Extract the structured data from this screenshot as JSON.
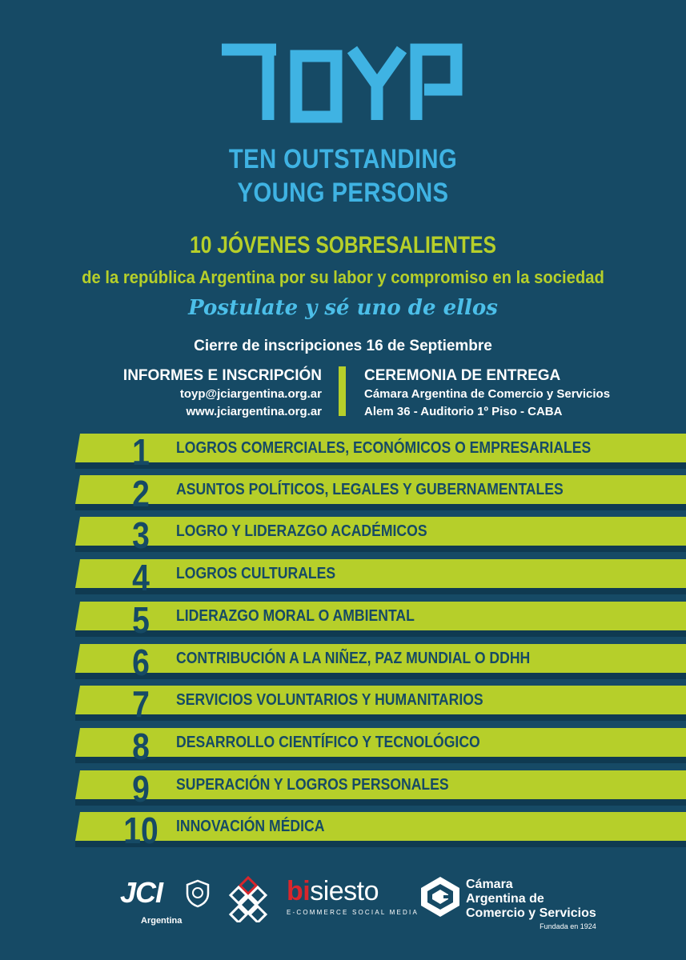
{
  "logo": {
    "wordmark": "TOYP"
  },
  "subtitle": {
    "line1": "TEN OUTSTANDING",
    "line2": "YOUNG PERSONS"
  },
  "heading": "10 JÓVENES SOBRESALIENTES",
  "subheading": "de la república Argentina por su labor y compromiso en la sociedad",
  "tagline": "Postulate y sé uno de ellos",
  "deadline": "Cierre de inscripciones 16 de Septiembre",
  "info": {
    "left_title": "INFORMES E INSCRIPCIÓN",
    "email": "toyp@jciargentina.org.ar",
    "website": "www.jciargentina.org.ar",
    "right_title": "CEREMONIA DE ENTREGA",
    "venue": "Cámara Argentina de Comercio y Servicios",
    "address": "Alem 36 - Auditorio 1º Piso - CABA"
  },
  "categories": [
    {
      "num": "1",
      "label": "LOGROS COMERCIALES, ECONÓMICOS O EMPRESARIALES"
    },
    {
      "num": "2",
      "label": "ASUNTOS POLÍTICOS, LEGALES Y GUBERNAMENTALES"
    },
    {
      "num": "3",
      "label": "LOGRO Y LIDERAZGO ACADÉMICOS"
    },
    {
      "num": "4",
      "label": "LOGROS CULTURALES"
    },
    {
      "num": "5",
      "label": "LIDERAZGO MORAL O AMBIENTAL"
    },
    {
      "num": "6",
      "label": "CONTRIBUCIÓN A LA NIÑEZ, PAZ MUNDIAL O DDHH"
    },
    {
      "num": "7",
      "label": "SERVICIOS VOLUNTARIOS Y HUMANITARIOS"
    },
    {
      "num": "8",
      "label": "DESARROLLO CIENTÍFICO Y TECNOLÓGICO"
    },
    {
      "num": "9",
      "label": "SUPERACIÓN Y LOGROS PERSONALES"
    },
    {
      "num": "10",
      "label": "INNOVACIÓN MÉDICA"
    }
  ],
  "sponsors": {
    "jci": {
      "name": "JCI",
      "sub": "Argentina"
    },
    "bisiesto": {
      "word_prefix": "bi",
      "word_rest": "siesto",
      "sub": "E-COMMERCE SOCIAL MEDIA"
    },
    "camara": {
      "line1": "Cámara",
      "line2": "Argentina de",
      "line3": "Comercio y Servicios",
      "founded": "Fundada en 1924"
    }
  },
  "colors": {
    "background": "#164a65",
    "accent_green": "#b6cf2a",
    "accent_blue": "#3fb3e3",
    "bisiesto_red": "#d9262c"
  }
}
